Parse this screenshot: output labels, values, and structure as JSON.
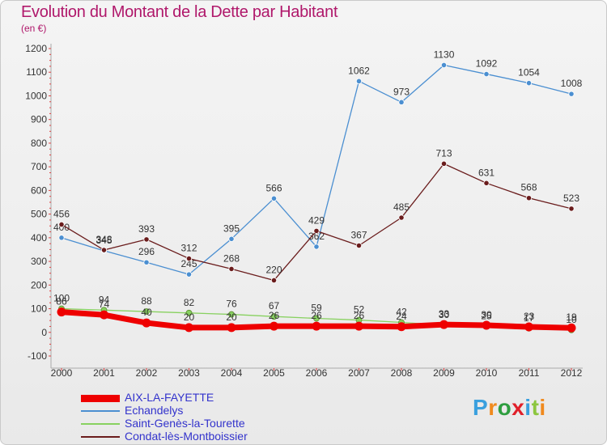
{
  "title": "Evolution du Montant de la Dette par Habitant",
  "unit_label": "(en €)",
  "brand": {
    "text": "Proxiti",
    "letter_colors": [
      "#3aa0de",
      "#f08a1e",
      "#2e9e3f",
      "#e0202a",
      "#3aa0de",
      "#8cc63f",
      "#f08a1e"
    ]
  },
  "chart_data": {
    "type": "line",
    "title": "Evolution du Montant de la Dette par Habitant",
    "ylabel": "(en €)",
    "xlabel": "",
    "categories": [
      "2000",
      "2001",
      "2002",
      "2003",
      "2004",
      "2005",
      "2006",
      "2007",
      "2008",
      "2009",
      "2010",
      "2011",
      "2012"
    ],
    "yticks": [
      "-100",
      "0",
      "100",
      "200",
      "300",
      "400",
      "500",
      "600",
      "700",
      "800",
      "900",
      "1000",
      "1100",
      "1200"
    ],
    "ylim": [
      -100,
      1200
    ],
    "grid": false,
    "legend_position": "bottom-left",
    "series": [
      {
        "name": "AIX-LA-FAYETTE",
        "color": "#ee0000",
        "values": [
          86,
          74,
          40,
          20,
          20,
          26,
          26,
          26,
          24,
          33,
          30,
          23,
          19
        ],
        "labels": [
          "86",
          "74",
          "40",
          "20",
          "20",
          "26",
          "26",
          "26",
          "24",
          "33",
          "30",
          "23",
          "19"
        ]
      },
      {
        "name": "Echandelys",
        "color": "#4b8fd1",
        "values": [
          400,
          345,
          296,
          245,
          395,
          566,
          362,
          1062,
          973,
          1130,
          1092,
          1054,
          1008
        ],
        "labels": [
          "400",
          "345",
          "296",
          "245",
          "395",
          "566",
          "362",
          "1062",
          "973",
          "1130",
          "1092",
          "1054",
          "1008"
        ]
      },
      {
        "name": "Saint-Genès-la-Tourette",
        "color": "#88d160",
        "values": [
          100,
          94,
          88,
          82,
          76,
          67,
          59,
          52,
          42,
          30,
          25,
          17,
          10
        ],
        "labels": [
          "100",
          "94",
          "88",
          "82",
          "76",
          "67",
          "59",
          "52",
          "42",
          "30",
          "25",
          "17",
          "10"
        ]
      },
      {
        "name": "Condat-lès-Montboissier",
        "color": "#6a1c1c",
        "values": [
          456,
          348,
          393,
          312,
          268,
          220,
          429,
          367,
          485,
          713,
          631,
          568,
          523
        ],
        "labels": [
          "456",
          "348",
          "393",
          "312",
          "268",
          "220",
          "429",
          "367",
          "485",
          "713",
          "631",
          "568",
          "523"
        ]
      }
    ]
  }
}
